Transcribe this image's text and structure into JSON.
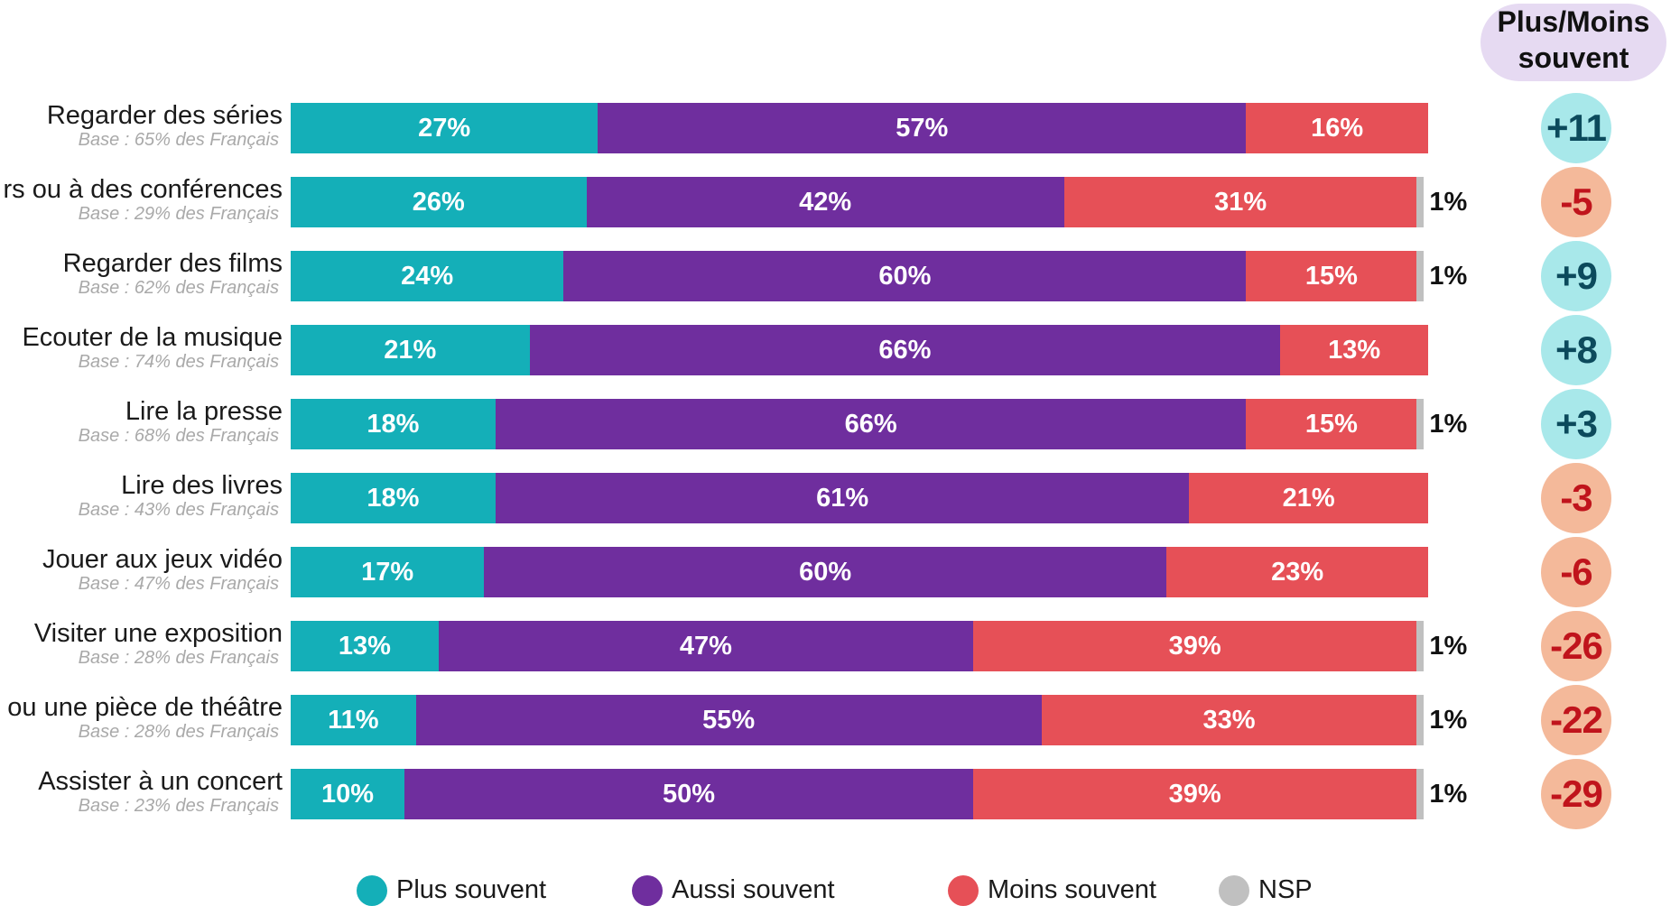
{
  "chart_data": {
    "type": "bar",
    "orientation": "horizontal",
    "stacked": true,
    "title": "",
    "xlabel": "",
    "ylabel": "",
    "xlim": [
      0,
      100
    ],
    "grid": false,
    "legend_position": "bottom",
    "categories": [
      "Regarder des séries",
      "Assister à des séminaires ou à des conférences",
      "Regarder des films",
      "Ecouter de la musique",
      "Lire la presse",
      "Lire des livres",
      "Jouer aux jeux vidéo",
      "Visiter une exposition",
      "Aller au cinéma ou une pièce de théâtre",
      "Assister à un concert"
    ],
    "category_labels_visible": [
      "Regarder des séries",
      "rs ou à des conférences",
      "Regarder des films",
      "Ecouter de la musique",
      "Lire la presse",
      "Lire des livres",
      "Jouer aux jeux vidéo",
      "Visiter une exposition",
      "ou une pièce de théâtre",
      "Assister à un concert"
    ],
    "bases": [
      "Base : 65% des Français",
      "Base : 29% des Français",
      "Base : 62% des Français",
      "Base : 74% des Français",
      "Base : 68% des Français",
      "Base : 43% des Français",
      "Base : 47% des Français",
      "Base : 28% des Français",
      "Base : 28% des Français",
      "Base : 23% des Français"
    ],
    "series": [
      {
        "name": "Plus souvent",
        "color": "#14afb8",
        "values": [
          27,
          26,
          24,
          21,
          18,
          18,
          17,
          13,
          11,
          10
        ]
      },
      {
        "name": "Aussi souvent",
        "color": "#6f2e9e",
        "values": [
          57,
          42,
          60,
          66,
          66,
          61,
          60,
          47,
          55,
          50
        ]
      },
      {
        "name": "Moins souvent",
        "color": "#e65057",
        "values": [
          16,
          31,
          15,
          13,
          15,
          21,
          23,
          39,
          33,
          39
        ]
      },
      {
        "name": "NSP",
        "color": "#c0c0c0",
        "values": [
          0,
          1,
          1,
          0,
          1,
          0,
          0,
          1,
          1,
          1
        ]
      }
    ],
    "value_suffix": "%",
    "diff_header": [
      "Plus/Moins",
      "souvent"
    ],
    "diff_values": [
      "+11",
      "-5",
      "+9",
      "+8",
      "+3",
      "-3",
      "-6",
      "-26",
      "-22",
      "-29"
    ],
    "diff_colors": {
      "positive_fill": "#a8e8ea",
      "positive_text": "#0c4a5c",
      "negative_fill": "#f4b99a",
      "negative_text": "#c0141c"
    }
  }
}
